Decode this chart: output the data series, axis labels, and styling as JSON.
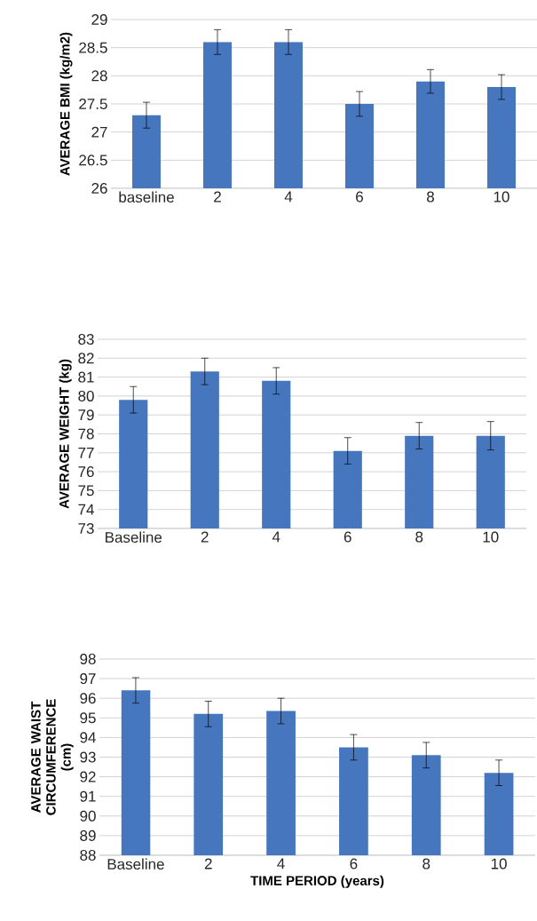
{
  "chart_data": [
    {
      "type": "bar",
      "ylabel": "AVERAGE BMI  (kg/m2)",
      "categories": [
        "baseline",
        "2",
        "4",
        "6",
        "8",
        "10"
      ],
      "values": [
        27.3,
        28.6,
        28.6,
        27.5,
        27.9,
        27.8
      ],
      "errors": [
        0.23,
        0.22,
        0.22,
        0.22,
        0.21,
        0.22
      ],
      "color": "#4677be",
      "ylim": [
        26,
        29
      ],
      "yticks": [
        26,
        26.5,
        27,
        27.5,
        28,
        28.5,
        29
      ],
      "grid": "y"
    },
    {
      "type": "bar",
      "ylabel": "AVERAGE WEIGHT (kg)",
      "categories": [
        "Baseline",
        "2",
        "4",
        "6",
        "8",
        "10"
      ],
      "values": [
        79.8,
        81.3,
        80.8,
        77.1,
        77.9,
        77.9
      ],
      "errors": [
        0.7,
        0.7,
        0.7,
        0.7,
        0.7,
        0.75
      ],
      "color": "#4677be",
      "ylim": [
        73,
        83
      ],
      "yticks": [
        73,
        74,
        75,
        76,
        77,
        78,
        79,
        80,
        81,
        82,
        83
      ],
      "grid": "y"
    },
    {
      "type": "bar",
      "ylabel": "AVERAGE WAIST CIRCUMFERENCE (cm)",
      "xlabel": "TIME PERIOD (years)",
      "categories": [
        "Baseline",
        "2",
        "4",
        "6",
        "8",
        "10"
      ],
      "values": [
        96.4,
        95.2,
        95.35,
        93.5,
        93.1,
        92.2
      ],
      "errors": [
        0.65,
        0.65,
        0.65,
        0.65,
        0.65,
        0.65
      ],
      "color": "#4677be",
      "ylim": [
        88,
        98
      ],
      "yticks": [
        88,
        89,
        90,
        91,
        92,
        93,
        94,
        95,
        96,
        97,
        98
      ],
      "grid": "y"
    }
  ]
}
